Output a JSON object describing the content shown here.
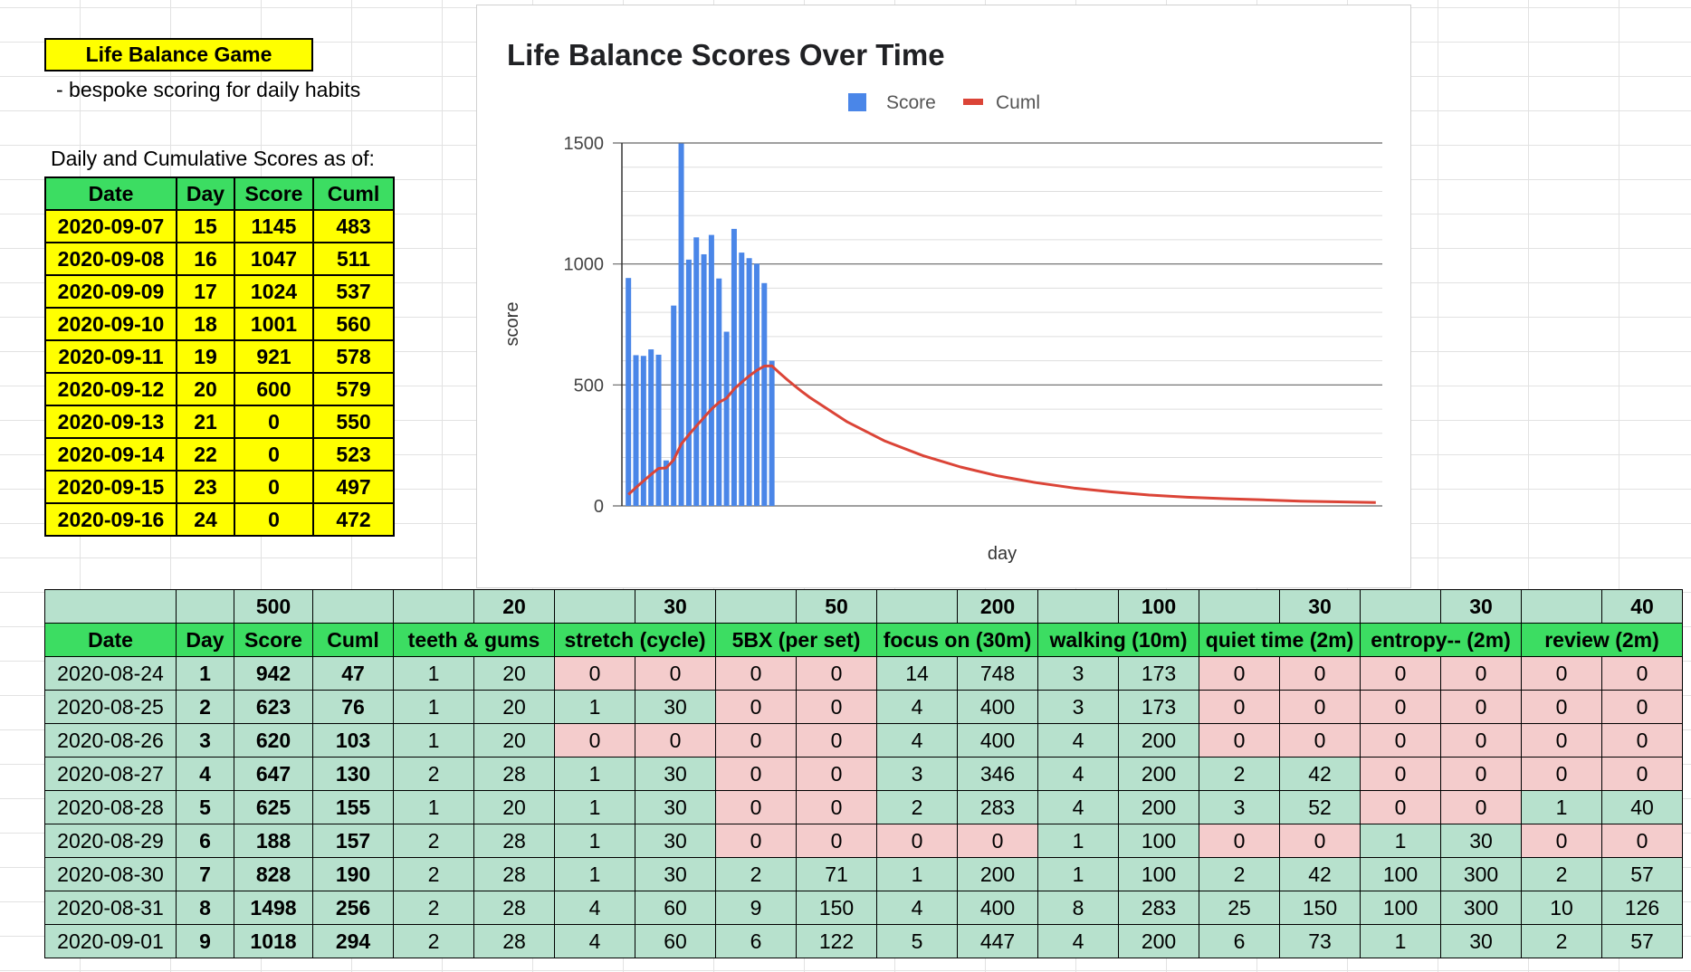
{
  "title": "Life Balance Game",
  "subtitle": "- bespoke scoring for daily habits",
  "as_of_label": "Daily and Cumulative Scores as of:",
  "recent": {
    "headers": [
      "Date",
      "Day",
      "Score",
      "Cuml"
    ],
    "rows": [
      [
        "2020-09-07",
        "15",
        "1145",
        "483"
      ],
      [
        "2020-09-08",
        "16",
        "1047",
        "511"
      ],
      [
        "2020-09-09",
        "17",
        "1024",
        "537"
      ],
      [
        "2020-09-10",
        "18",
        "1001",
        "560"
      ],
      [
        "2020-09-11",
        "19",
        "921",
        "578"
      ],
      [
        "2020-09-12",
        "20",
        "600",
        "579"
      ],
      [
        "2020-09-13",
        "21",
        "0",
        "550"
      ],
      [
        "2020-09-14",
        "22",
        "0",
        "523"
      ],
      [
        "2020-09-15",
        "23",
        "0",
        "497"
      ],
      [
        "2020-09-16",
        "24",
        "0",
        "472"
      ]
    ]
  },
  "chart_data": {
    "type": "bar",
    "title": "Life Balance Scores Over Time",
    "xlabel": "day",
    "ylabel": "score",
    "ylim": [
      0,
      1500
    ],
    "yticks": [
      0,
      500,
      1000,
      1500
    ],
    "grid": true,
    "legend": "top",
    "series": [
      {
        "name": "Score",
        "type": "bar",
        "color": "#4a86e8",
        "x": [
          1,
          2,
          3,
          4,
          5,
          6,
          7,
          8,
          9,
          10,
          11,
          12,
          13,
          14,
          15,
          16,
          17,
          18,
          19,
          20
        ],
        "values": [
          942,
          623,
          620,
          647,
          625,
          188,
          828,
          1498,
          1018,
          1110,
          1040,
          1120,
          940,
          720,
          1145,
          1047,
          1024,
          1001,
          921,
          600
        ]
      },
      {
        "name": "Cuml",
        "type": "line",
        "color": "#db4437",
        "x": [
          1,
          2,
          3,
          4,
          5,
          6,
          7,
          8,
          9,
          10,
          11,
          12,
          13,
          14,
          15,
          16,
          17,
          18,
          19,
          20,
          21,
          22,
          23,
          24,
          25,
          30,
          35,
          40,
          45,
          50,
          55,
          60,
          65,
          70,
          75,
          80,
          85,
          90,
          95,
          100
        ],
        "values": [
          47,
          76,
          103,
          130,
          155,
          157,
          190,
          256,
          294,
          330,
          365,
          400,
          428,
          445,
          483,
          511,
          537,
          560,
          578,
          579,
          550,
          523,
          497,
          472,
          449,
          347,
          268,
          208,
          161,
          124,
          96,
          74,
          58,
          45,
          36,
          30,
          25,
          20,
          17,
          14
        ]
      }
    ]
  },
  "main": {
    "weights": [
      "",
      "",
      "500",
      "",
      "",
      "20",
      "",
      "30",
      "",
      "50",
      "",
      "200",
      "",
      "100",
      "",
      "30",
      "",
      "30",
      "",
      "40"
    ],
    "headers": [
      "Date",
      "Day",
      "Score",
      "Cuml",
      "teeth & gums",
      "stretch (cycle)",
      "5BX (per set)",
      "focus on (30m)",
      "walking (10m)",
      "quiet time (2m)",
      "entropy-- (2m)",
      "review (2m)"
    ],
    "rows": [
      [
        "2020-08-24",
        "1",
        "942",
        "47",
        "1",
        "20",
        "0",
        "0",
        "0",
        "0",
        "14",
        "748",
        "3",
        "173",
        "0",
        "0",
        "0",
        "0",
        "0",
        "0"
      ],
      [
        "2020-08-25",
        "2",
        "623",
        "76",
        "1",
        "20",
        "1",
        "30",
        "0",
        "0",
        "4",
        "400",
        "3",
        "173",
        "0",
        "0",
        "0",
        "0",
        "0",
        "0"
      ],
      [
        "2020-08-26",
        "3",
        "620",
        "103",
        "1",
        "20",
        "0",
        "0",
        "0",
        "0",
        "4",
        "400",
        "4",
        "200",
        "0",
        "0",
        "0",
        "0",
        "0",
        "0"
      ],
      [
        "2020-08-27",
        "4",
        "647",
        "130",
        "2",
        "28",
        "1",
        "30",
        "0",
        "0",
        "3",
        "346",
        "4",
        "200",
        "2",
        "42",
        "0",
        "0",
        "0",
        "0"
      ],
      [
        "2020-08-28",
        "5",
        "625",
        "155",
        "1",
        "20",
        "1",
        "30",
        "0",
        "0",
        "2",
        "283",
        "4",
        "200",
        "3",
        "52",
        "0",
        "0",
        "1",
        "40"
      ],
      [
        "2020-08-29",
        "6",
        "188",
        "157",
        "2",
        "28",
        "1",
        "30",
        "0",
        "0",
        "0",
        "0",
        "1",
        "100",
        "0",
        "0",
        "1",
        "30",
        "0",
        "0"
      ],
      [
        "2020-08-30",
        "7",
        "828",
        "190",
        "2",
        "28",
        "1",
        "30",
        "2",
        "71",
        "1",
        "200",
        "1",
        "100",
        "2",
        "42",
        "100",
        "300",
        "2",
        "57"
      ],
      [
        "2020-08-31",
        "8",
        "1498",
        "256",
        "2",
        "28",
        "4",
        "60",
        "9",
        "150",
        "4",
        "400",
        "8",
        "283",
        "25",
        "150",
        "100",
        "300",
        "10",
        "126"
      ],
      [
        "2020-09-01",
        "9",
        "1018",
        "294",
        "2",
        "28",
        "4",
        "60",
        "6",
        "122",
        "5",
        "447",
        "4",
        "200",
        "6",
        "73",
        "1",
        "30",
        "2",
        "57"
      ]
    ]
  },
  "colors": {
    "yellow": "#ffff00",
    "header_green": "#3cdd62",
    "good_green": "#b7e1cd",
    "bad_red": "#f4cccc",
    "bar_blue": "#4a86e8",
    "line_red": "#db4437"
  }
}
